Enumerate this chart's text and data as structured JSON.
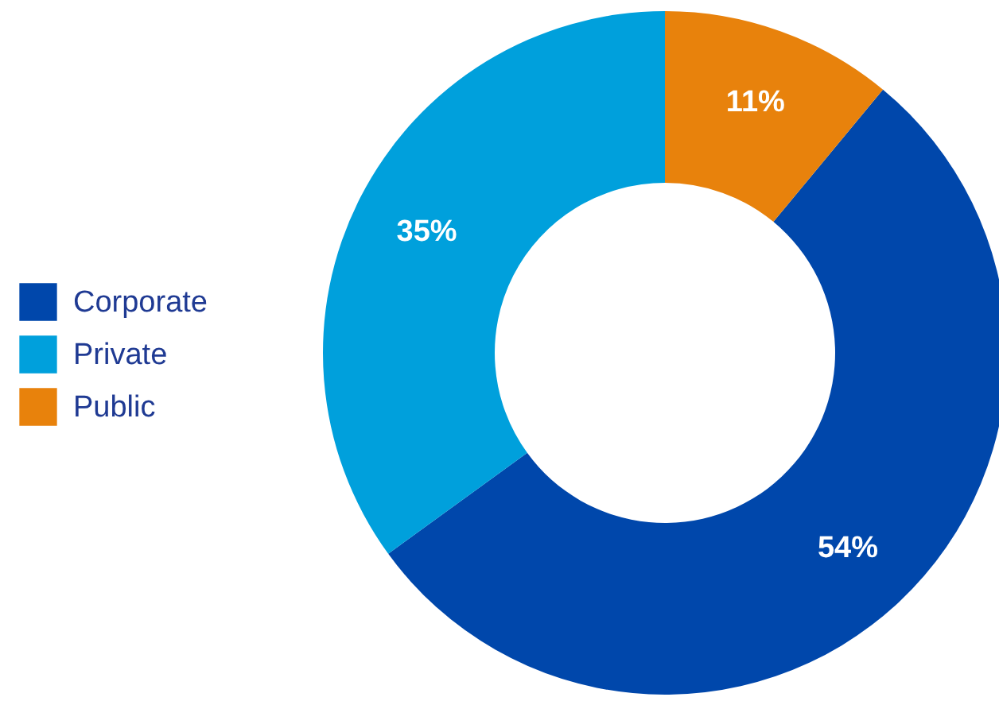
{
  "chart_data": {
    "type": "donut",
    "categories": [
      "Corporate",
      "Private",
      "Public"
    ],
    "values": [
      54,
      35,
      11
    ],
    "colors": [
      "#0047ab",
      "#00a0dc",
      "#e8820c"
    ],
    "value_labels": [
      "54%",
      "35%",
      "11%"
    ],
    "legend": "left"
  }
}
